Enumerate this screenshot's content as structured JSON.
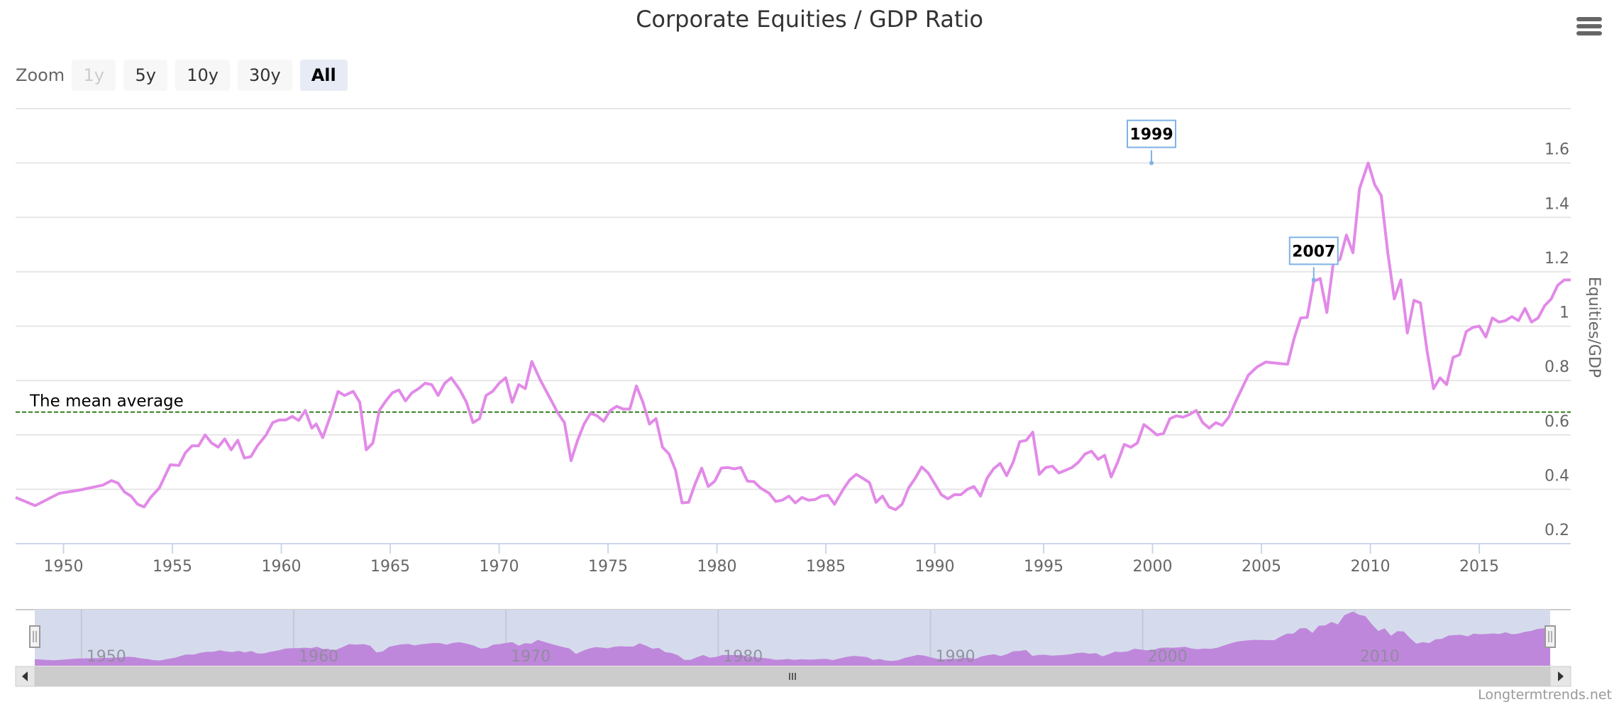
{
  "title": "Corporate Equities / GDP Ratio",
  "menu_icon": "hamburger-menu-icon",
  "range_selector": {
    "label": "Zoom",
    "buttons": [
      {
        "label": "1y",
        "state": "disabled"
      },
      {
        "label": "5y",
        "state": "normal"
      },
      {
        "label": "10y",
        "state": "normal"
      },
      {
        "label": "30y",
        "state": "normal"
      },
      {
        "label": "All",
        "state": "active"
      }
    ]
  },
  "credit": "Longtermtrends.net",
  "colors": {
    "series": "#e28ae8",
    "mean": "#2e7d1a",
    "navigator_fill": "#bf87db",
    "navigator_mask": "#d5dbec",
    "flag_border": "#7fb2e5"
  },
  "chart_data": {
    "type": "line",
    "title": "Corporate Equities / GDP Ratio",
    "xlabel": "",
    "ylabel": "Equities/GDP",
    "xlim": [
      1947.8,
      2019.2
    ],
    "ylim": [
      0.2,
      1.8
    ],
    "x_ticks": [
      "1950",
      "1955",
      "1960",
      "1965",
      "1970",
      "1975",
      "1980",
      "1985",
      "1990",
      "1995",
      "2000",
      "2005",
      "2010",
      "2015"
    ],
    "y_ticks": [
      "0.2",
      "0.4",
      "0.6",
      "0.8",
      "1",
      "1.2",
      "1.4",
      "1.6"
    ],
    "grid": true,
    "y_axis_side": "right",
    "mean_line": {
      "value": 0.684,
      "label": "The mean average"
    },
    "flags": [
      {
        "label": "1999",
        "x": 1999.95,
        "y": 1.6
      },
      {
        "label": "2007",
        "x": 2007.4,
        "y": 1.17
      }
    ],
    "navigator_ticks": [
      "1950",
      "1960",
      "1970",
      "1980",
      "1990",
      "2000",
      "2010"
    ],
    "series": [
      {
        "name": "Equities/GDP",
        "points": [
          [
            1947.8,
            0.37
          ],
          [
            1948.7,
            0.34
          ],
          [
            1949.8,
            0.385
          ],
          [
            1950.8,
            0.398
          ],
          [
            1951.8,
            0.415
          ],
          [
            1952.2,
            0.432
          ],
          [
            1952.5,
            0.423
          ],
          [
            1952.8,
            0.39
          ],
          [
            1953.1,
            0.375
          ],
          [
            1953.4,
            0.345
          ],
          [
            1953.7,
            0.335
          ],
          [
            1954.0,
            0.37
          ],
          [
            1954.4,
            0.405
          ],
          [
            1954.9,
            0.49
          ],
          [
            1955.3,
            0.488
          ],
          [
            1955.6,
            0.535
          ],
          [
            1955.9,
            0.56
          ],
          [
            1956.2,
            0.56
          ],
          [
            1956.5,
            0.6
          ],
          [
            1956.8,
            0.57
          ],
          [
            1957.1,
            0.555
          ],
          [
            1957.4,
            0.585
          ],
          [
            1957.7,
            0.545
          ],
          [
            1958.0,
            0.58
          ],
          [
            1958.3,
            0.515
          ],
          [
            1958.6,
            0.52
          ],
          [
            1958.9,
            0.56
          ],
          [
            1959.3,
            0.6
          ],
          [
            1959.6,
            0.645
          ],
          [
            1959.9,
            0.655
          ],
          [
            1960.2,
            0.655
          ],
          [
            1960.5,
            0.668
          ],
          [
            1960.8,
            0.653
          ],
          [
            1961.1,
            0.69
          ],
          [
            1961.4,
            0.625
          ],
          [
            1961.6,
            0.64
          ],
          [
            1961.9,
            0.59
          ],
          [
            1962.3,
            0.68
          ],
          [
            1962.6,
            0.76
          ],
          [
            1962.9,
            0.745
          ],
          [
            1963.3,
            0.76
          ],
          [
            1963.6,
            0.72
          ],
          [
            1963.9,
            0.545
          ],
          [
            1964.2,
            0.57
          ],
          [
            1964.5,
            0.69
          ],
          [
            1964.8,
            0.725
          ],
          [
            1965.1,
            0.755
          ],
          [
            1965.4,
            0.765
          ],
          [
            1965.7,
            0.725
          ],
          [
            1966.0,
            0.755
          ],
          [
            1966.3,
            0.77
          ],
          [
            1966.6,
            0.79
          ],
          [
            1966.9,
            0.785
          ],
          [
            1967.2,
            0.745
          ],
          [
            1967.5,
            0.79
          ],
          [
            1967.8,
            0.81
          ],
          [
            1968.2,
            0.765
          ],
          [
            1968.5,
            0.72
          ],
          [
            1968.8,
            0.645
          ],
          [
            1969.1,
            0.66
          ],
          [
            1969.4,
            0.745
          ],
          [
            1969.7,
            0.76
          ],
          [
            1970.0,
            0.79
          ],
          [
            1970.3,
            0.81
          ],
          [
            1970.6,
            0.72
          ],
          [
            1970.9,
            0.785
          ],
          [
            1971.2,
            0.77
          ],
          [
            1971.5,
            0.87
          ],
          [
            1971.9,
            0.8
          ],
          [
            1972.3,
            0.74
          ],
          [
            1972.7,
            0.68
          ],
          [
            1973.0,
            0.645
          ],
          [
            1973.3,
            0.505
          ],
          [
            1973.6,
            0.58
          ],
          [
            1973.9,
            0.64
          ],
          [
            1974.2,
            0.68
          ],
          [
            1974.5,
            0.67
          ],
          [
            1974.8,
            0.65
          ],
          [
            1975.1,
            0.69
          ],
          [
            1975.4,
            0.705
          ],
          [
            1975.7,
            0.695
          ],
          [
            1976.0,
            0.695
          ],
          [
            1976.3,
            0.78
          ],
          [
            1976.6,
            0.72
          ],
          [
            1976.9,
            0.64
          ],
          [
            1977.2,
            0.66
          ],
          [
            1977.5,
            0.555
          ],
          [
            1977.8,
            0.53
          ],
          [
            1978.1,
            0.47
          ],
          [
            1978.4,
            0.35
          ],
          [
            1978.7,
            0.352
          ],
          [
            1979.0,
            0.42
          ],
          [
            1979.3,
            0.478
          ],
          [
            1979.6,
            0.41
          ],
          [
            1979.9,
            0.43
          ],
          [
            1980.2,
            0.478
          ],
          [
            1980.5,
            0.48
          ],
          [
            1980.8,
            0.475
          ],
          [
            1981.1,
            0.48
          ],
          [
            1981.4,
            0.43
          ],
          [
            1981.7,
            0.428
          ],
          [
            1982.0,
            0.405
          ],
          [
            1982.4,
            0.385
          ],
          [
            1982.7,
            0.355
          ],
          [
            1983.0,
            0.36
          ],
          [
            1983.3,
            0.375
          ],
          [
            1983.6,
            0.35
          ],
          [
            1983.9,
            0.37
          ],
          [
            1984.2,
            0.36
          ],
          [
            1984.5,
            0.362
          ],
          [
            1984.8,
            0.375
          ],
          [
            1985.1,
            0.378
          ],
          [
            1985.4,
            0.345
          ],
          [
            1985.8,
            0.4
          ],
          [
            1986.1,
            0.435
          ],
          [
            1986.4,
            0.455
          ],
          [
            1986.7,
            0.44
          ],
          [
            1987.0,
            0.425
          ],
          [
            1987.3,
            0.352
          ],
          [
            1987.6,
            0.375
          ],
          [
            1987.9,
            0.335
          ],
          [
            1988.2,
            0.325
          ],
          [
            1988.5,
            0.345
          ],
          [
            1988.8,
            0.405
          ],
          [
            1989.1,
            0.44
          ],
          [
            1989.4,
            0.482
          ],
          [
            1989.7,
            0.46
          ],
          [
            1990.0,
            0.42
          ],
          [
            1990.3,
            0.38
          ],
          [
            1990.6,
            0.365
          ],
          [
            1990.9,
            0.38
          ],
          [
            1991.2,
            0.38
          ],
          [
            1991.5,
            0.4
          ],
          [
            1991.8,
            0.41
          ],
          [
            1992.1,
            0.375
          ],
          [
            1992.4,
            0.44
          ],
          [
            1992.7,
            0.475
          ],
          [
            1993.0,
            0.495
          ],
          [
            1993.3,
            0.45
          ],
          [
            1993.6,
            0.5
          ],
          [
            1993.9,
            0.575
          ],
          [
            1994.2,
            0.58
          ],
          [
            1994.5,
            0.61
          ],
          [
            1994.8,
            0.455
          ],
          [
            1995.1,
            0.48
          ],
          [
            1995.4,
            0.485
          ],
          [
            1995.7,
            0.46
          ],
          [
            1996.0,
            0.47
          ],
          [
            1996.3,
            0.48
          ],
          [
            1996.6,
            0.5
          ],
          [
            1996.9,
            0.53
          ],
          [
            1997.2,
            0.54
          ],
          [
            1997.5,
            0.51
          ],
          [
            1997.8,
            0.525
          ],
          [
            1998.1,
            0.445
          ],
          [
            1998.4,
            0.5
          ],
          [
            1998.7,
            0.565
          ],
          [
            1999.0,
            0.555
          ],
          [
            1999.3,
            0.57
          ],
          [
            1999.6,
            0.638
          ],
          [
            1999.9,
            0.62
          ],
          [
            2000.2,
            0.6
          ],
          [
            2000.5,
            0.605
          ],
          [
            2000.8,
            0.66
          ],
          [
            2001.1,
            0.67
          ],
          [
            2001.4,
            0.665
          ],
          [
            2001.7,
            0.675
          ],
          [
            2002.0,
            0.69
          ],
          [
            2002.3,
            0.645
          ],
          [
            2002.6,
            0.625
          ],
          [
            2002.9,
            0.645
          ],
          [
            2003.2,
            0.635
          ],
          [
            2003.5,
            0.665
          ],
          [
            2003.8,
            0.72
          ],
          [
            2004.1,
            0.77
          ],
          [
            2004.4,
            0.82
          ],
          [
            2004.8,
            0.85
          ],
          [
            2005.2,
            0.868
          ],
          [
            2005.9,
            0.862
          ],
          [
            2006.2,
            0.86
          ],
          [
            2006.5,
            0.955
          ],
          [
            2006.8,
            1.03
          ],
          [
            2007.1,
            1.032
          ],
          [
            2007.4,
            1.165
          ],
          [
            2007.7,
            1.175
          ],
          [
            2008.0,
            1.05
          ],
          [
            2008.3,
            1.235
          ],
          [
            2008.6,
            1.245
          ],
          [
            2008.9,
            1.335
          ],
          [
            2009.2,
            1.27
          ],
          [
            2009.5,
            1.505
          ],
          [
            2009.9,
            1.6
          ],
          [
            2010.2,
            1.52
          ],
          [
            2010.5,
            1.48
          ],
          [
            2010.8,
            1.27
          ],
          [
            2011.1,
            1.1
          ],
          [
            2011.4,
            1.17
          ],
          [
            2011.7,
            0.975
          ],
          [
            2012.0,
            1.095
          ],
          [
            2012.3,
            1.085
          ],
          [
            2012.6,
            0.91
          ],
          [
            2012.9,
            0.77
          ],
          [
            2013.2,
            0.81
          ],
          [
            2013.5,
            0.785
          ],
          [
            2013.8,
            0.885
          ],
          [
            2014.1,
            0.895
          ],
          [
            2014.4,
            0.98
          ],
          [
            2014.7,
            0.995
          ],
          [
            2015.0,
            1.0
          ],
          [
            2015.3,
            0.96
          ],
          [
            2015.6,
            1.03
          ],
          [
            2015.9,
            1.015
          ],
          [
            2016.2,
            1.02
          ],
          [
            2016.5,
            1.035
          ],
          [
            2016.8,
            1.02
          ],
          [
            2017.1,
            1.065
          ],
          [
            2017.4,
            1.015
          ],
          [
            2017.7,
            1.03
          ],
          [
            2018.0,
            1.075
          ],
          [
            2018.3,
            1.1
          ],
          [
            2018.6,
            1.15
          ],
          [
            2018.9,
            1.17
          ],
          [
            2019.2,
            1.17
          ]
        ]
      }
    ]
  }
}
